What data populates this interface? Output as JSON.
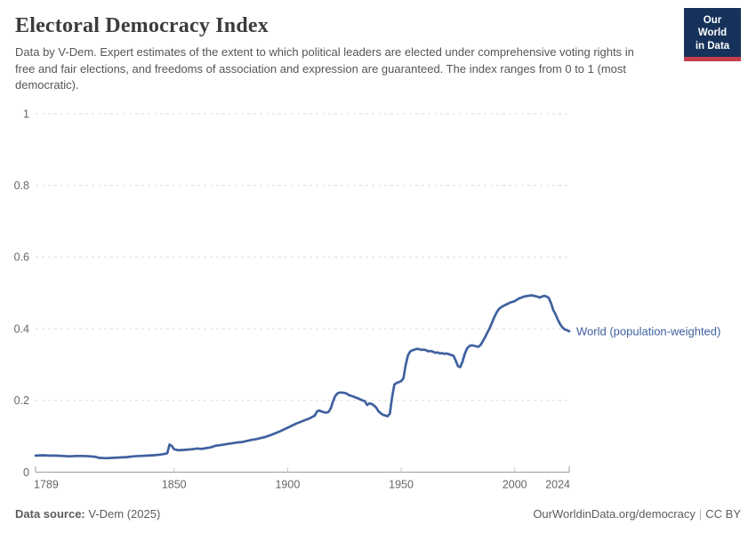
{
  "header": {
    "title": "Electoral Democracy Index",
    "subtitle": "Data by V-Dem. Expert estimates of the extent to which political leaders are elected under comprehensive voting rights in free and fair elections, and freedoms of association and expression are guaranteed. The index ranges from 0 to 1 (most democratic).",
    "logo": {
      "line1": "Our World",
      "line2": "in Data",
      "bg_color": "#16325A",
      "accent_color": "#C53E4C"
    }
  },
  "chart_data": {
    "type": "line",
    "title": "Electoral Democracy Index",
    "xlabel": "",
    "ylabel": "",
    "xlim": [
      1789,
      2024
    ],
    "ylim": [
      0,
      1
    ],
    "x_ticks": [
      1789,
      1850,
      1900,
      1950,
      2000,
      2024
    ],
    "y_ticks": [
      0,
      0.2,
      0.4,
      0.6,
      0.8,
      1
    ],
    "y_tick_labels": [
      "0",
      "0.2",
      "0.4",
      "0.6",
      "0.8",
      "1"
    ],
    "grid": "horizontal dashed",
    "legend_position": "end-of-line label",
    "colors": {
      "grid": "#dcdcdc",
      "axis": "#9d9d9d",
      "minor_tick": "#c6c6c6",
      "tick_label": "#666666"
    },
    "series": [
      {
        "name": "World (population-weighted)",
        "color": "#3F619F",
        "points": [
          [
            1789,
            0.046
          ],
          [
            1792,
            0.047
          ],
          [
            1795,
            0.046
          ],
          [
            1798,
            0.046
          ],
          [
            1801,
            0.045
          ],
          [
            1804,
            0.044
          ],
          [
            1807,
            0.045
          ],
          [
            1810,
            0.045
          ],
          [
            1813,
            0.044
          ],
          [
            1815,
            0.043
          ],
          [
            1817,
            0.04
          ],
          [
            1820,
            0.039
          ],
          [
            1823,
            0.04
          ],
          [
            1826,
            0.041
          ],
          [
            1829,
            0.042
          ],
          [
            1832,
            0.044
          ],
          [
            1835,
            0.045
          ],
          [
            1838,
            0.046
          ],
          [
            1841,
            0.047
          ],
          [
            1844,
            0.049
          ],
          [
            1846,
            0.051
          ],
          [
            1847,
            0.053
          ],
          [
            1848,
            0.077
          ],
          [
            1849,
            0.073
          ],
          [
            1850,
            0.064
          ],
          [
            1852,
            0.061
          ],
          [
            1854,
            0.062
          ],
          [
            1856,
            0.063
          ],
          [
            1858,
            0.064
          ],
          [
            1860,
            0.066
          ],
          [
            1862,
            0.065
          ],
          [
            1864,
            0.067
          ],
          [
            1866,
            0.069
          ],
          [
            1868,
            0.073
          ],
          [
            1870,
            0.075
          ],
          [
            1872,
            0.077
          ],
          [
            1874,
            0.079
          ],
          [
            1876,
            0.081
          ],
          [
            1878,
            0.083
          ],
          [
            1880,
            0.084
          ],
          [
            1882,
            0.087
          ],
          [
            1884,
            0.09
          ],
          [
            1886,
            0.092
          ],
          [
            1888,
            0.095
          ],
          [
            1890,
            0.098
          ],
          [
            1892,
            0.102
          ],
          [
            1894,
            0.107
          ],
          [
            1896,
            0.112
          ],
          [
            1898,
            0.118
          ],
          [
            1900,
            0.124
          ],
          [
            1902,
            0.13
          ],
          [
            1904,
            0.136
          ],
          [
            1906,
            0.141
          ],
          [
            1908,
            0.146
          ],
          [
            1910,
            0.151
          ],
          [
            1912,
            0.158
          ],
          [
            1913,
            0.17
          ],
          [
            1914,
            0.172
          ],
          [
            1915,
            0.169
          ],
          [
            1916,
            0.167
          ],
          [
            1917,
            0.166
          ],
          [
            1918,
            0.168
          ],
          [
            1919,
            0.178
          ],
          [
            1920,
            0.198
          ],
          [
            1921,
            0.213
          ],
          [
            1922,
            0.22
          ],
          [
            1923,
            0.222
          ],
          [
            1924,
            0.222
          ],
          [
            1925,
            0.221
          ],
          [
            1926,
            0.219
          ],
          [
            1927,
            0.215
          ],
          [
            1928,
            0.213
          ],
          [
            1929,
            0.211
          ],
          [
            1930,
            0.208
          ],
          [
            1931,
            0.206
          ],
          [
            1932,
            0.203
          ],
          [
            1933,
            0.2
          ],
          [
            1934,
            0.198
          ],
          [
            1935,
            0.187
          ],
          [
            1936,
            0.192
          ],
          [
            1937,
            0.19
          ],
          [
            1938,
            0.186
          ],
          [
            1939,
            0.18
          ],
          [
            1940,
            0.17
          ],
          [
            1941,
            0.164
          ],
          [
            1942,
            0.16
          ],
          [
            1943,
            0.158
          ],
          [
            1944,
            0.156
          ],
          [
            1945,
            0.163
          ],
          [
            1946,
            0.21
          ],
          [
            1947,
            0.244
          ],
          [
            1948,
            0.249
          ],
          [
            1949,
            0.251
          ],
          [
            1950,
            0.254
          ],
          [
            1951,
            0.262
          ],
          [
            1952,
            0.3
          ],
          [
            1953,
            0.326
          ],
          [
            1954,
            0.337
          ],
          [
            1955,
            0.34
          ],
          [
            1956,
            0.342
          ],
          [
            1957,
            0.344
          ],
          [
            1958,
            0.343
          ],
          [
            1959,
            0.341
          ],
          [
            1960,
            0.342
          ],
          [
            1961,
            0.34
          ],
          [
            1962,
            0.337
          ],
          [
            1963,
            0.338
          ],
          [
            1964,
            0.336
          ],
          [
            1965,
            0.333
          ],
          [
            1966,
            0.334
          ],
          [
            1967,
            0.331
          ],
          [
            1968,
            0.332
          ],
          [
            1969,
            0.33
          ],
          [
            1970,
            0.331
          ],
          [
            1971,
            0.329
          ],
          [
            1972,
            0.327
          ],
          [
            1973,
            0.325
          ],
          [
            1974,
            0.312
          ],
          [
            1975,
            0.296
          ],
          [
            1976,
            0.293
          ],
          [
            1977,
            0.308
          ],
          [
            1978,
            0.33
          ],
          [
            1979,
            0.345
          ],
          [
            1980,
            0.352
          ],
          [
            1981,
            0.354
          ],
          [
            1982,
            0.353
          ],
          [
            1983,
            0.351
          ],
          [
            1984,
            0.35
          ],
          [
            1985,
            0.355
          ],
          [
            1986,
            0.366
          ],
          [
            1987,
            0.377
          ],
          [
            1988,
            0.39
          ],
          [
            1989,
            0.402
          ],
          [
            1990,
            0.417
          ],
          [
            1991,
            0.432
          ],
          [
            1992,
            0.445
          ],
          [
            1993,
            0.455
          ],
          [
            1994,
            0.46
          ],
          [
            1995,
            0.464
          ],
          [
            1996,
            0.467
          ],
          [
            1997,
            0.47
          ],
          [
            1998,
            0.473
          ],
          [
            1999,
            0.475
          ],
          [
            2000,
            0.477
          ],
          [
            2001,
            0.481
          ],
          [
            2002,
            0.485
          ],
          [
            2003,
            0.487
          ],
          [
            2004,
            0.49
          ],
          [
            2005,
            0.491
          ],
          [
            2006,
            0.492
          ],
          [
            2007,
            0.493
          ],
          [
            2008,
            0.493
          ],
          [
            2009,
            0.491
          ],
          [
            2010,
            0.49
          ],
          [
            2011,
            0.487
          ],
          [
            2012,
            0.49
          ],
          [
            2013,
            0.492
          ],
          [
            2014,
            0.49
          ],
          [
            2015,
            0.486
          ],
          [
            2016,
            0.471
          ],
          [
            2017,
            0.452
          ],
          [
            2018,
            0.44
          ],
          [
            2019,
            0.425
          ],
          [
            2020,
            0.413
          ],
          [
            2021,
            0.404
          ],
          [
            2022,
            0.398
          ],
          [
            2023,
            0.396
          ],
          [
            2024,
            0.393
          ]
        ]
      }
    ]
  },
  "footer": {
    "source_label": "Data source:",
    "source_value": "V-Dem (2025)",
    "link": "OurWorldinData.org/democracy",
    "separator": "|",
    "license": "CC BY"
  }
}
